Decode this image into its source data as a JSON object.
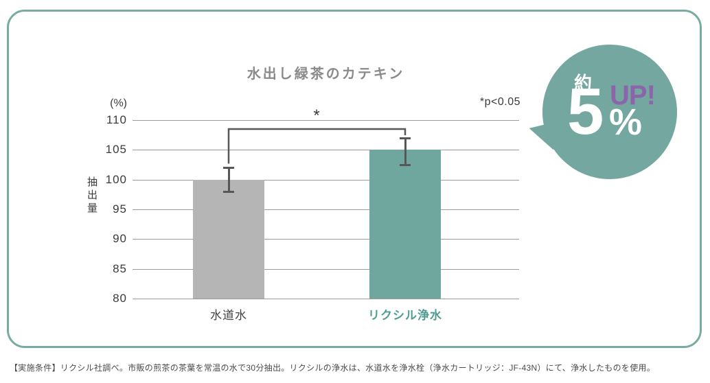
{
  "chart_data": {
    "type": "bar",
    "title": "水出し緑茶のカテキン",
    "unit_label": "(%)",
    "ylabel": "抽出量",
    "p_note": "*p<0.05",
    "significance_marker": "*",
    "categories": [
      "水道水",
      "リクシル浄水"
    ],
    "values": [
      100,
      105
    ],
    "error_bars": [
      {
        "low": 98,
        "high": 102
      },
      {
        "low": 102.5,
        "high": 107
      }
    ],
    "bar_colors": [
      "#b5b5b5",
      "#6fa79f"
    ],
    "category_label_colors": [
      "#404040",
      "#4f9c91"
    ],
    "category_label_bold": [
      false,
      true
    ],
    "ylim": [
      80,
      110
    ],
    "yticks": [
      80,
      85,
      90,
      95,
      100,
      105,
      110
    ],
    "grid": true,
    "legend": "none"
  },
  "badge": {
    "prefix": "約",
    "value": "5",
    "percent_sign": "%",
    "suffix": "UP!",
    "bg_color": "#73a79f",
    "suffix_color": "#8c64aa"
  },
  "footnote": "【実施条件】リクシル社調べ。市販の煎茶の茶葉を常温の水で30分抽出。リクシルの浄水は、水道水を浄水栓（浄水カートリッジ：JF-43N）にて、浄水したものを使用。",
  "colors": {
    "card_border": "#79aba3",
    "gridline": "#9b9b9b",
    "error_bar": "#575757",
    "title_text": "#8a8a8a"
  }
}
